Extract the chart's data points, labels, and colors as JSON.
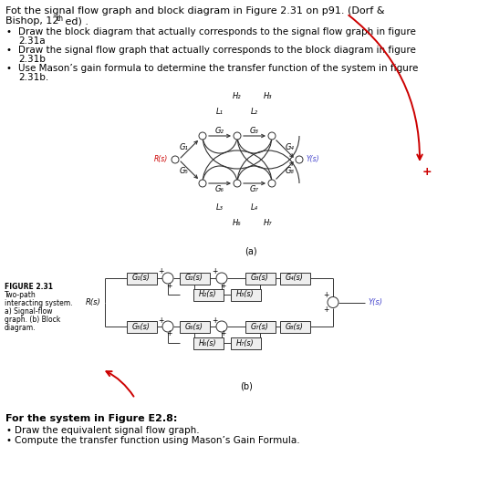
{
  "title_line1": "Fot the signal flow graph and block diagram in Figure 2.31 on p91. (Dorf &",
  "title_line2": "Bishop, 12",
  "title_sup": "th",
  "title_line2c": " ed) .",
  "bullet1a": "Draw the block diagram that actually corresponds to the signal flow graph in figure",
  "bullet1b": "2.31a",
  "bullet2a": "Draw the signal flow graph that actually corresponds to the block diagram in figure",
  "bullet2b": "2.31b",
  "bullet3a": "Use Mason’s gain formula to determine the transfer function of the system in figure",
  "bullet3b": "2.31b.",
  "label_a": "(a)",
  "label_b": "(b)",
  "figure_cap1": "FIGURE 2.31",
  "figure_cap2": "Two-path",
  "figure_cap3": "interacting system.",
  "figure_cap4": "a) Signal-flow",
  "figure_cap5": "graph. (b) Block",
  "figure_cap6": "diagram.",
  "footer_title": "For the system in Figure E2.8:",
  "footer_b1": "Draw the equivalent signal flow graph.",
  "footer_b2": "Compute the transfer function using Mason’s Gain Formula.",
  "bg_color": "#ffffff",
  "text_color": "#000000",
  "red_color": "#cc0000",
  "blue_color": "#4444cc",
  "box_face": "#eeeeee",
  "box_edge": "#333333"
}
